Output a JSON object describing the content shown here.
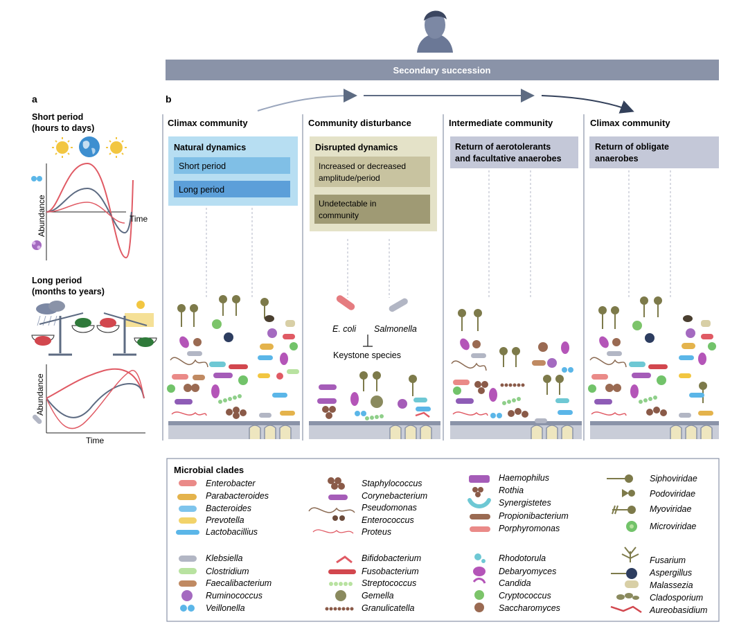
{
  "panel_a": {
    "letter": "a",
    "short_title_1": "Short period",
    "short_title_2": "(hours to days)",
    "long_title_1": "Long period",
    "long_title_2": "(months to years)",
    "y_label": "Abundance",
    "x_label": "Time"
  },
  "panel_b": {
    "letter": "b",
    "banner": "Secondary succession",
    "columns": [
      {
        "title": "Climax community"
      },
      {
        "title": "Community disturbance"
      },
      {
        "title": "Intermediate community"
      },
      {
        "title": "Climax community"
      }
    ],
    "natural": {
      "title": "Natural dynamics",
      "short": "Short period",
      "long": "Long period"
    },
    "disrupted": {
      "title": "Disrupted dynamics",
      "line1a": "Increased or decreased",
      "line1b": "amplitude/period",
      "line2a": "Undetectable in",
      "line2b": "community"
    },
    "intermediate": {
      "line1": "Return of aerotolerants",
      "line2": "and facultative anaerobes"
    },
    "climax_return": {
      "line1": "Return of obligate",
      "line2": "anaerobes"
    },
    "pathogens": {
      "ecoli": "E. coli",
      "salmonella": "Salmonella",
      "keystone": "Keystone species"
    }
  },
  "legend": {
    "title": "Microbial clades",
    "col1a": [
      "Enterobacter",
      "Parabacteroides",
      "Bacteroides",
      "Prevotella",
      "Lactobacillius"
    ],
    "col1b": [
      "Klebsiella",
      "Clostridium",
      "Faecalibacterium",
      "Ruminococcus",
      "Veillonella"
    ],
    "col2a": [
      "Staphylococcus",
      "Corynebacterium",
      "Pseudomonas",
      "Enterococcus",
      "Proteus"
    ],
    "col2b": [
      "Bifidobacterium",
      "Fusobacterium",
      "Streptococcus",
      "Gemella",
      "Granulicatella"
    ],
    "col3a": [
      "Haemophilus",
      "Rothia",
      "Synergistetes",
      "Propionibacterium",
      "Porphyromonas"
    ],
    "col3b": [
      "Rhodotorula",
      "Debaryomyces",
      "Candida",
      "Cryptococcus",
      "Saccharomyces"
    ],
    "col4a": [
      "Siphoviridae",
      "Podoviridae",
      "Myoviridae",
      "Microviridae"
    ],
    "col4b": [
      "Fusarium",
      "Aspergillus",
      "Malassezia",
      "Cladosporium",
      "Aureobasidium"
    ]
  },
  "colors": {
    "banner": "#8a93a8",
    "natural_box": "#b7def2",
    "disrupted_box": "#e4e2c8",
    "inter_box": "#c4c8d8",
    "curve_red": "#e05a64",
    "curve_gray": "#5d6b82"
  }
}
